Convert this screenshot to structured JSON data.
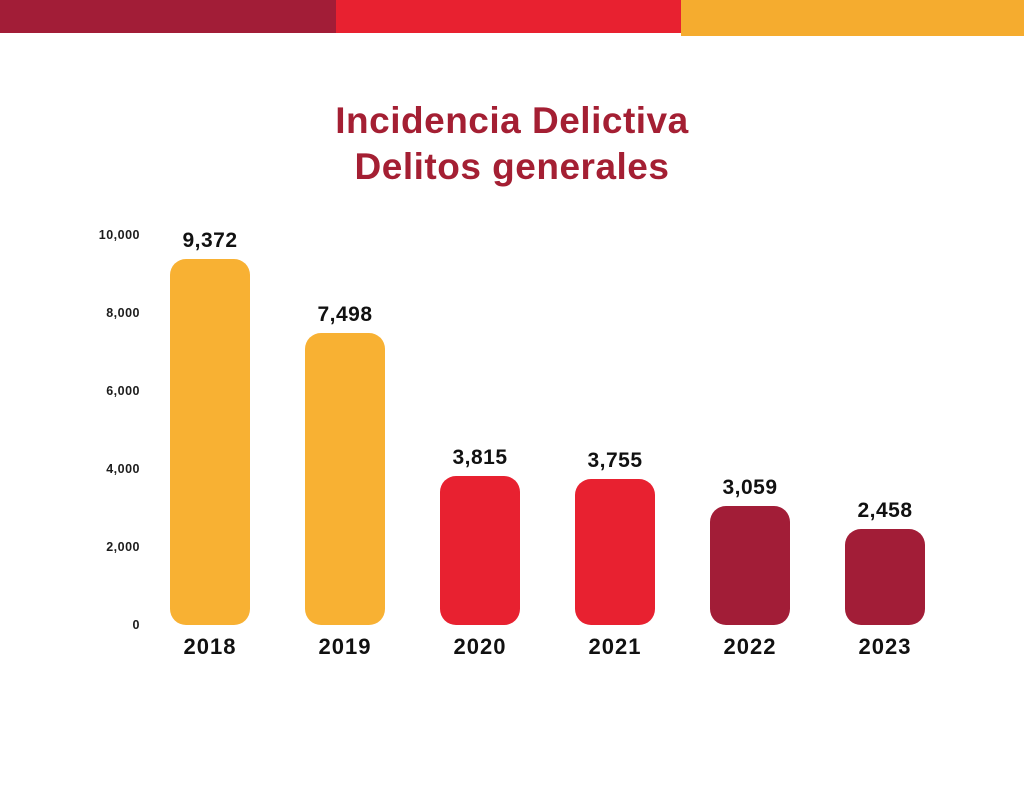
{
  "banner": {
    "segments": [
      {
        "name": "maroon",
        "color": "#A21D37"
      },
      {
        "name": "red",
        "color": "#E82130"
      },
      {
        "name": "yellow",
        "color": "#F5AC2F"
      }
    ]
  },
  "title": {
    "line1": "Incidencia Delictiva",
    "line2": "Delitos generales",
    "color": "#A41F33"
  },
  "chart_data": {
    "type": "bar",
    "title": "Incidencia Delictiva — Delitos generales",
    "categories": [
      "2018",
      "2019",
      "2020",
      "2021",
      "2022",
      "2023"
    ],
    "values": [
      9372,
      7498,
      3815,
      3755,
      3059,
      2458
    ],
    "value_labels": [
      "9,372",
      "7,498",
      "3,815",
      "3,755",
      "3,059",
      "2,458"
    ],
    "bar_colors": [
      "#F8B133",
      "#F8B133",
      "#E82130",
      "#E82130",
      "#A21D37",
      "#A21D37"
    ],
    "xlabel": "",
    "ylabel": "",
    "ylim": [
      0,
      10000
    ],
    "yticks": [
      {
        "value": 0,
        "label": "0"
      },
      {
        "value": 2000,
        "label": "2,000"
      },
      {
        "value": 4000,
        "label": "4,000"
      },
      {
        "value": 6000,
        "label": "6,000"
      },
      {
        "value": 8000,
        "label": "8,000"
      },
      {
        "value": 10000,
        "label": "10,000"
      }
    ],
    "grid": false,
    "legend": null
  }
}
